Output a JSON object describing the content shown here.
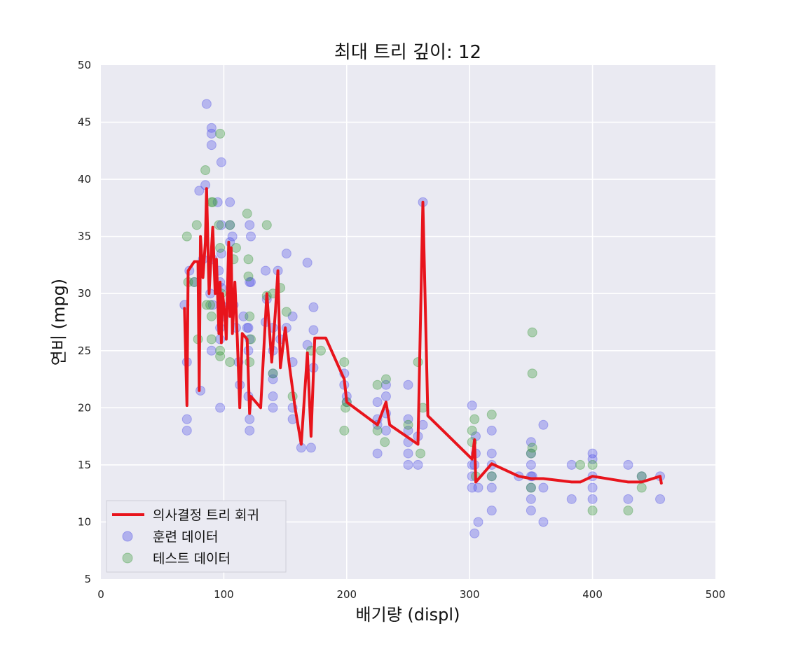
{
  "chart_data": {
    "type": "scatter",
    "title": "최대 트리 깊이: 12",
    "xlabel": "배기량 (displ)",
    "ylabel": "연비 (mpg)",
    "xlim": [
      0,
      500
    ],
    "ylim": [
      5,
      50
    ],
    "xticks": [
      "0",
      "100",
      "200",
      "300",
      "400",
      "500"
    ],
    "yticks": [
      "5",
      "10",
      "15",
      "20",
      "25",
      "30",
      "35",
      "40",
      "45",
      "50"
    ],
    "grid": true,
    "legend_position": "lower-left",
    "colors": {
      "line": "#e8141c",
      "train": "#4646e6",
      "test": "#3c9a3c",
      "plot_bg": "#eaeaf2"
    },
    "legend": [
      {
        "label": "의사결정 트리 회귀",
        "kind": "line"
      },
      {
        "label": "훈련 데이터",
        "kind": "train"
      },
      {
        "label": "테스트 데이터",
        "kind": "test"
      }
    ],
    "series": [
      {
        "name": "훈련 데이터",
        "points": [
          [
            68,
            29
          ],
          [
            70,
            24
          ],
          [
            70,
            19
          ],
          [
            70,
            18
          ],
          [
            72,
            32
          ],
          [
            76,
            31
          ],
          [
            80,
            39
          ],
          [
            81,
            21.5
          ],
          [
            83,
            33
          ],
          [
            85,
            39.5
          ],
          [
            86,
            46.6
          ],
          [
            89,
            30
          ],
          [
            90,
            44
          ],
          [
            90,
            43
          ],
          [
            90,
            44.5
          ],
          [
            90,
            25
          ],
          [
            91,
            33
          ],
          [
            91,
            29
          ],
          [
            95,
            38
          ],
          [
            96,
            32
          ],
          [
            97,
            27
          ],
          [
            97,
            26
          ],
          [
            97,
            31
          ],
          [
            97,
            20
          ],
          [
            98,
            41.5
          ],
          [
            98,
            36
          ],
          [
            98,
            33.5
          ],
          [
            98,
            30.5
          ],
          [
            98,
            29
          ],
          [
            100,
            28
          ],
          [
            105,
            38
          ],
          [
            105,
            36
          ],
          [
            105,
            34.5
          ],
          [
            107,
            35
          ],
          [
            108,
            29
          ],
          [
            110,
            27
          ],
          [
            112,
            24
          ],
          [
            113,
            22
          ],
          [
            116,
            28
          ],
          [
            119,
            27
          ],
          [
            120,
            25
          ],
          [
            120,
            27
          ],
          [
            120,
            21
          ],
          [
            121,
            31
          ],
          [
            121,
            36
          ],
          [
            121,
            26
          ],
          [
            121,
            19
          ],
          [
            121,
            18
          ],
          [
            122,
            35
          ],
          [
            122,
            31
          ],
          [
            134,
            32
          ],
          [
            134,
            27.5
          ],
          [
            135,
            29.5
          ],
          [
            140,
            27
          ],
          [
            140,
            25
          ],
          [
            140,
            23
          ],
          [
            140,
            22.5
          ],
          [
            140,
            21
          ],
          [
            140,
            20
          ],
          [
            144,
            32
          ],
          [
            146,
            26
          ],
          [
            151,
            33.5
          ],
          [
            151,
            27
          ],
          [
            156,
            28
          ],
          [
            156,
            24
          ],
          [
            156,
            20
          ],
          [
            156,
            19
          ],
          [
            163,
            16.5
          ],
          [
            168,
            25.5
          ],
          [
            168,
            32.7
          ],
          [
            171,
            16.5
          ],
          [
            173,
            28.8
          ],
          [
            173,
            26.8
          ],
          [
            173,
            23.5
          ],
          [
            198,
            23
          ],
          [
            198,
            22
          ],
          [
            200,
            21
          ],
          [
            200,
            20.5
          ],
          [
            225,
            16
          ],
          [
            225,
            18.5
          ],
          [
            225,
            19
          ],
          [
            225,
            20.5
          ],
          [
            232,
            22
          ],
          [
            232,
            21
          ],
          [
            232,
            19.5
          ],
          [
            232,
            18
          ],
          [
            250,
            22
          ],
          [
            250,
            18
          ],
          [
            250,
            17
          ],
          [
            250,
            16
          ],
          [
            250,
            15
          ],
          [
            250,
            19
          ],
          [
            258,
            15
          ],
          [
            258,
            17.5
          ],
          [
            262,
            18.5
          ],
          [
            262,
            38
          ],
          [
            302,
            13
          ],
          [
            302,
            14
          ],
          [
            302,
            15
          ],
          [
            302,
            20.2
          ],
          [
            304,
            15
          ],
          [
            304,
            9
          ],
          [
            305,
            16
          ],
          [
            305,
            17.5
          ],
          [
            307,
            10
          ],
          [
            307,
            13
          ],
          [
            318,
            14
          ],
          [
            318,
            16
          ],
          [
            318,
            11
          ],
          [
            318,
            13
          ],
          [
            318,
            15
          ],
          [
            318,
            18
          ],
          [
            340,
            14
          ],
          [
            350,
            15
          ],
          [
            350,
            13
          ],
          [
            350,
            12
          ],
          [
            350,
            17
          ],
          [
            350,
            11
          ],
          [
            350,
            16
          ],
          [
            350,
            14
          ],
          [
            351,
            14
          ],
          [
            360,
            13
          ],
          [
            360,
            10
          ],
          [
            360,
            18.5
          ],
          [
            383,
            15
          ],
          [
            383,
            12
          ],
          [
            400,
            15.5
          ],
          [
            400,
            16
          ],
          [
            400,
            14
          ],
          [
            400,
            13
          ],
          [
            400,
            12
          ],
          [
            429,
            12
          ],
          [
            429,
            15
          ],
          [
            440,
            14
          ],
          [
            455,
            12
          ],
          [
            455,
            14
          ]
        ]
      },
      {
        "name": "테스트 데이터",
        "points": [
          [
            70,
            35
          ],
          [
            71,
            31
          ],
          [
            76,
            31
          ],
          [
            78,
            36
          ],
          [
            79,
            26
          ],
          [
            85,
            40.8
          ],
          [
            86,
            29
          ],
          [
            89,
            29
          ],
          [
            90,
            28
          ],
          [
            90,
            38
          ],
          [
            90,
            26
          ],
          [
            91,
            38
          ],
          [
            96,
            36
          ],
          [
            97,
            44
          ],
          [
            97,
            34
          ],
          [
            97,
            25
          ],
          [
            97,
            24.5
          ],
          [
            98,
            30
          ],
          [
            105,
            36
          ],
          [
            105,
            24
          ],
          [
            108,
            33
          ],
          [
            110,
            34
          ],
          [
            119,
            37
          ],
          [
            120,
            31.5
          ],
          [
            120,
            33
          ],
          [
            121,
            28
          ],
          [
            121,
            24
          ],
          [
            122,
            26
          ],
          [
            135,
            29.8
          ],
          [
            135,
            36
          ],
          [
            140,
            30
          ],
          [
            140,
            23
          ],
          [
            146,
            30.5
          ],
          [
            151,
            28.4
          ],
          [
            156,
            21
          ],
          [
            171,
            25
          ],
          [
            179,
            25
          ],
          [
            198,
            24
          ],
          [
            198,
            18
          ],
          [
            199,
            20
          ],
          [
            200,
            20.5
          ],
          [
            225,
            22
          ],
          [
            225,
            18
          ],
          [
            231,
            17
          ],
          [
            232,
            22.5
          ],
          [
            250,
            18.5
          ],
          [
            258,
            24
          ],
          [
            260,
            16
          ],
          [
            262,
            20
          ],
          [
            302,
            18
          ],
          [
            302,
            17
          ],
          [
            304,
            19
          ],
          [
            305,
            14
          ],
          [
            318,
            19.4
          ],
          [
            318,
            14
          ],
          [
            351,
            26.6
          ],
          [
            351,
            23
          ],
          [
            351,
            16.5
          ],
          [
            350,
            16
          ],
          [
            350,
            13
          ],
          [
            390,
            15
          ],
          [
            400,
            11
          ],
          [
            400,
            15
          ],
          [
            429,
            11
          ],
          [
            440,
            13
          ],
          [
            440,
            14
          ]
        ]
      },
      {
        "name": "의사결정 트리 회귀",
        "points": [
          [
            68,
            28.7
          ],
          [
            70,
            20.2
          ],
          [
            71,
            32
          ],
          [
            76,
            32.8
          ],
          [
            79,
            32.8
          ],
          [
            80,
            21.5
          ],
          [
            81,
            35
          ],
          [
            83,
            31.4
          ],
          [
            85,
            34.5
          ],
          [
            86,
            39.2
          ],
          [
            88,
            30
          ],
          [
            90,
            34
          ],
          [
            91,
            35.8
          ],
          [
            93,
            30
          ],
          [
            94,
            33
          ],
          [
            96,
            26.5
          ],
          [
            97,
            31
          ],
          [
            98,
            25.7
          ],
          [
            99,
            30
          ],
          [
            101,
            28
          ],
          [
            102,
            26
          ],
          [
            104,
            34.5
          ],
          [
            105,
            28
          ],
          [
            106,
            34
          ],
          [
            107,
            26.5
          ],
          [
            109,
            31
          ],
          [
            111,
            26
          ],
          [
            113,
            20
          ],
          [
            115,
            26.5
          ],
          [
            119,
            26
          ],
          [
            121,
            19.5
          ],
          [
            122,
            21
          ],
          [
            130,
            20
          ],
          [
            135,
            30
          ],
          [
            139,
            24
          ],
          [
            142,
            28.5
          ],
          [
            144,
            32
          ],
          [
            146,
            23.5
          ],
          [
            150,
            27
          ],
          [
            153,
            24
          ],
          [
            158,
            20
          ],
          [
            163,
            16.8
          ],
          [
            168,
            24.8
          ],
          [
            171,
            17.5
          ],
          [
            174,
            26.1
          ],
          [
            183,
            26.1
          ],
          [
            198,
            22.5
          ],
          [
            200,
            20.5
          ],
          [
            225,
            18.5
          ],
          [
            232,
            20.5
          ],
          [
            235,
            18.5
          ],
          [
            258,
            16.8
          ],
          [
            262,
            38
          ],
          [
            266,
            19.3
          ],
          [
            302,
            15.5
          ],
          [
            304,
            17.2
          ],
          [
            305,
            13.5
          ],
          [
            318,
            15.1
          ],
          [
            340,
            14
          ],
          [
            350,
            13.8
          ],
          [
            360,
            13.8
          ],
          [
            383,
            13.5
          ],
          [
            390,
            13.5
          ],
          [
            400,
            14
          ],
          [
            429,
            13.5
          ],
          [
            440,
            13.5
          ],
          [
            455,
            14
          ],
          [
            456,
            13.4
          ]
        ]
      }
    ]
  }
}
